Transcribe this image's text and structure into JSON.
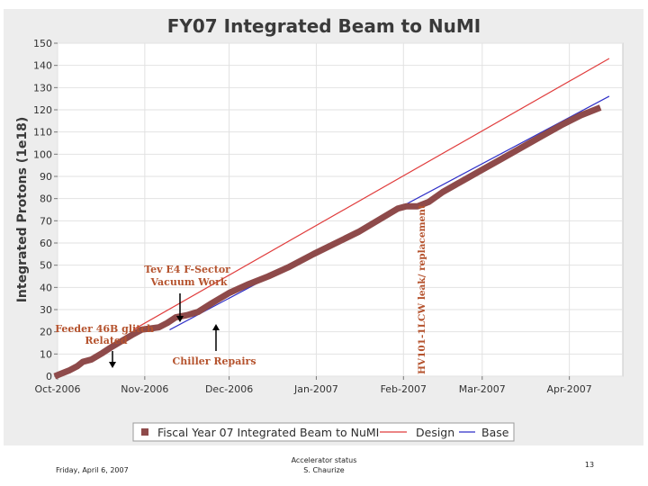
{
  "chart_data": {
    "type": "line",
    "title": "FY07 Integrated Beam to NuMI",
    "ylabel": "Integrated Protons (1e18)",
    "xlabel": "",
    "ylim": [
      0,
      150
    ],
    "yticks": [
      0,
      10,
      20,
      30,
      40,
      50,
      60,
      70,
      80,
      90,
      100,
      110,
      120,
      130,
      140,
      150
    ],
    "xrange": [
      "2006-10-01",
      "2007-04-20"
    ],
    "xticks": [
      {
        "date": "2006-10-01",
        "label": "Oct-2006"
      },
      {
        "date": "2006-11-01",
        "label": "Nov-2006"
      },
      {
        "date": "2006-12-01",
        "label": "Dec-2006"
      },
      {
        "date": "2007-01-01",
        "label": "Jan-2007"
      },
      {
        "date": "2007-02-01",
        "label": "Feb-2007"
      },
      {
        "date": "2007-03-01",
        "label": "Mar-2007"
      },
      {
        "date": "2007-04-01",
        "label": "Apr-2007"
      }
    ],
    "grid": true,
    "legend_position": "bottom",
    "series": [
      {
        "name": "Fiscal Year 07 Integrated Beam to NuMI",
        "color": "#8e4a4a",
        "points": [
          [
            "2006-10-01",
            0.5
          ],
          [
            "2006-10-03",
            1.5
          ],
          [
            "2006-10-05",
            2.5
          ],
          [
            "2006-10-08",
            4.5
          ],
          [
            "2006-10-10",
            6.5
          ],
          [
            "2006-10-13",
            7.5
          ],
          [
            "2006-10-17",
            10.5
          ],
          [
            "2006-10-20",
            13
          ],
          [
            "2006-10-24",
            16
          ],
          [
            "2006-10-28",
            19
          ],
          [
            "2006-10-31",
            21
          ],
          [
            "2006-11-03",
            21.5
          ],
          [
            "2006-11-06",
            22
          ],
          [
            "2006-11-09",
            24
          ],
          [
            "2006-11-12",
            26.5
          ],
          [
            "2006-11-16",
            27.5
          ],
          [
            "2006-11-20",
            29
          ],
          [
            "2006-11-25",
            33
          ],
          [
            "2006-12-01",
            37.5
          ],
          [
            "2006-12-08",
            41.5
          ],
          [
            "2006-12-15",
            45
          ],
          [
            "2006-12-22",
            49
          ],
          [
            "2006-12-31",
            55
          ],
          [
            "2007-01-08",
            60
          ],
          [
            "2007-01-16",
            65
          ],
          [
            "2007-01-24",
            71
          ],
          [
            "2007-01-30",
            75.5
          ],
          [
            "2007-02-02",
            76.5
          ],
          [
            "2007-02-06",
            76.5
          ],
          [
            "2007-02-10",
            78.5
          ],
          [
            "2007-02-15",
            83
          ],
          [
            "2007-02-22",
            88
          ],
          [
            "2007-03-01",
            93
          ],
          [
            "2007-03-08",
            98
          ],
          [
            "2007-03-15",
            103
          ],
          [
            "2007-03-22",
            108
          ],
          [
            "2007-03-29",
            113
          ],
          [
            "2007-04-05",
            117.5
          ],
          [
            "2007-04-11",
            120.5
          ]
        ]
      },
      {
        "name": "Design",
        "color": "#e03c3c",
        "points": [
          [
            "2006-10-28",
            21
          ],
          [
            "2007-04-15",
            143
          ]
        ]
      },
      {
        "name": "Base",
        "color": "#2f2fc8",
        "points": [
          [
            "2006-11-10",
            21
          ],
          [
            "2007-04-15",
            126
          ]
        ]
      }
    ],
    "annotations": {
      "feeder": "Feeder 46B glitch\nRelated",
      "tev": "Tev E4 F-Sector\nVacuum Work",
      "chiller": "Chiller Repairs",
      "hv": "HV101-1LCW leak/ replacement"
    }
  },
  "footer": {
    "date": "Friday, April 6, 2007",
    "center_line1": "Accelerator status",
    "center_line2": "S. Chaurize",
    "page": "13"
  }
}
